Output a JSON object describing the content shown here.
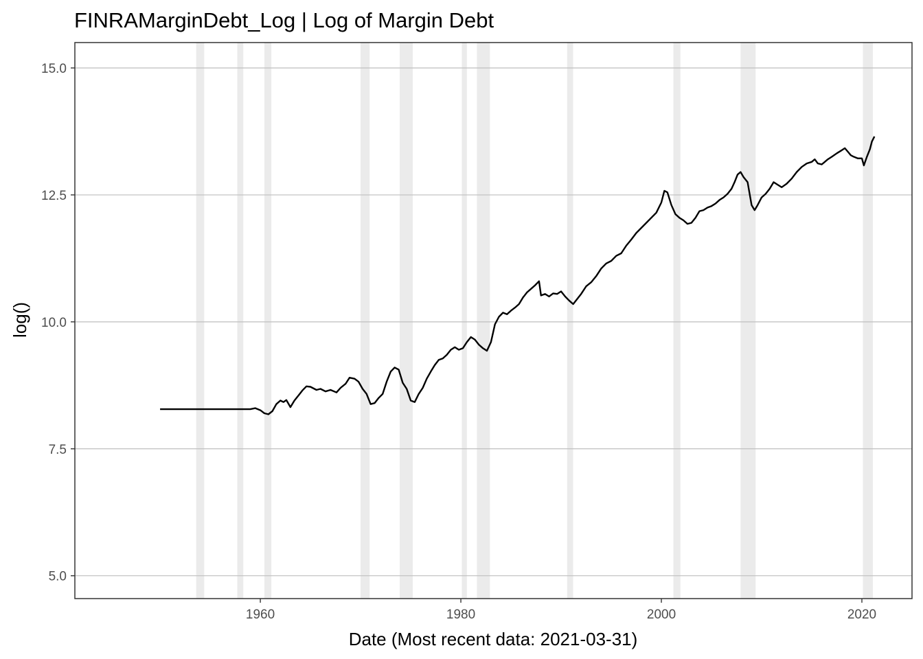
{
  "chart_data": {
    "type": "line",
    "title": "FINRAMarginDebt_Log | Log of Margin Debt",
    "xlabel": "Date (Most recent data: 2021-03-31)",
    "ylabel": "log()",
    "xlim": [
      1941.5,
      2025.0
    ],
    "ylim": [
      4.55,
      15.5
    ],
    "x_ticks": [
      1960,
      1980,
      2000,
      2020
    ],
    "x_tick_labels": [
      "1960",
      "1980",
      "2000",
      "2020"
    ],
    "y_ticks": [
      5.0,
      7.5,
      10.0,
      12.5,
      15.0
    ],
    "y_tick_labels": [
      "5.0",
      "7.5",
      "10.0",
      "12.5",
      "15.0"
    ],
    "grid": true,
    "colors": {
      "line": "#000000",
      "recession_band": "#ebebeb",
      "grid": "#bebebe",
      "border": "#333333"
    },
    "recessions": [
      [
        1953.6,
        1954.4
      ],
      [
        1957.7,
        1958.3
      ],
      [
        1960.4,
        1961.1
      ],
      [
        1970.0,
        1970.9
      ],
      [
        1973.9,
        1975.2
      ],
      [
        1980.1,
        1980.6
      ],
      [
        1981.6,
        1982.9
      ],
      [
        1990.6,
        1991.2
      ],
      [
        2001.2,
        2001.9
      ],
      [
        2007.9,
        2009.4
      ],
      [
        2020.1,
        2021.1
      ]
    ],
    "series": [
      {
        "x": [
          1950.0,
          1952.0,
          1955.0,
          1958.0,
          1959.0,
          1959.5,
          1960.0,
          1960.4,
          1960.8,
          1961.2,
          1961.6,
          1962.0,
          1962.3,
          1962.6,
          1963.0,
          1963.4,
          1963.8,
          1964.2,
          1964.6,
          1965.0,
          1965.6,
          1966.0,
          1966.5,
          1967.0,
          1967.6,
          1968.0,
          1968.5,
          1968.9,
          1969.4,
          1969.8,
          1970.2,
          1970.6,
          1971.0,
          1971.4,
          1971.8,
          1972.2,
          1972.6,
          1973.0,
          1973.4,
          1973.8,
          1974.2,
          1974.6,
          1975.0,
          1975.4,
          1975.8,
          1976.2,
          1976.6,
          1977.0,
          1977.4,
          1977.8,
          1978.2,
          1978.6,
          1979.0,
          1979.4,
          1979.8,
          1980.2,
          1980.6,
          1981.0,
          1981.4,
          1981.8,
          1982.2,
          1982.6,
          1983.0,
          1983.4,
          1983.8,
          1984.2,
          1984.6,
          1985.0,
          1985.4,
          1985.8,
          1986.2,
          1986.6,
          1987.0,
          1987.4,
          1987.8,
          1988.0,
          1988.4,
          1988.8,
          1989.2,
          1989.6,
          1990.0,
          1990.4,
          1990.8,
          1991.2,
          1991.6,
          1992.0,
          1992.5,
          1993.0,
          1993.5,
          1994.0,
          1994.5,
          1995.0,
          1995.5,
          1996.0,
          1996.5,
          1997.0,
          1997.5,
          1998.0,
          1998.5,
          1999.0,
          1999.5,
          2000.0,
          2000.3,
          2000.6,
          2001.0,
          2001.4,
          2001.8,
          2002.2,
          2002.6,
          2003.0,
          2003.4,
          2003.8,
          2004.2,
          2004.6,
          2005.0,
          2005.4,
          2005.8,
          2006.2,
          2006.6,
          2007.0,
          2007.3,
          2007.6,
          2007.9,
          2008.2,
          2008.6,
          2009.0,
          2009.3,
          2009.6,
          2010.0,
          2010.4,
          2010.8,
          2011.2,
          2011.6,
          2012.0,
          2012.5,
          2013.0,
          2013.5,
          2014.0,
          2014.5,
          2015.0,
          2015.3,
          2015.6,
          2016.0,
          2016.3,
          2016.6,
          2017.0,
          2017.5,
          2018.0,
          2018.3,
          2018.6,
          2018.9,
          2019.2,
          2019.6,
          2020.0,
          2020.2,
          2020.5,
          2020.8,
          2021.0,
          2021.25
        ],
        "values": [
          8.28,
          8.28,
          8.28,
          8.28,
          8.28,
          8.3,
          8.26,
          8.2,
          8.18,
          8.24,
          8.38,
          8.45,
          8.42,
          8.46,
          8.32,
          8.45,
          8.55,
          8.65,
          8.73,
          8.72,
          8.66,
          8.68,
          8.63,
          8.66,
          8.61,
          8.7,
          8.78,
          8.9,
          8.88,
          8.82,
          8.68,
          8.58,
          8.38,
          8.4,
          8.5,
          8.58,
          8.82,
          9.02,
          9.1,
          9.06,
          8.8,
          8.68,
          8.45,
          8.42,
          8.58,
          8.7,
          8.88,
          9.02,
          9.15,
          9.25,
          9.28,
          9.35,
          9.45,
          9.5,
          9.45,
          9.48,
          9.6,
          9.7,
          9.65,
          9.55,
          9.48,
          9.43,
          9.6,
          9.95,
          10.1,
          10.18,
          10.15,
          10.22,
          10.28,
          10.35,
          10.48,
          10.58,
          10.65,
          10.72,
          10.8,
          10.52,
          10.55,
          10.5,
          10.56,
          10.55,
          10.6,
          10.5,
          10.42,
          10.35,
          10.45,
          10.55,
          10.7,
          10.78,
          10.9,
          11.05,
          11.15,
          11.2,
          11.3,
          11.35,
          11.5,
          11.62,
          11.75,
          11.85,
          11.95,
          12.05,
          12.15,
          12.35,
          12.58,
          12.55,
          12.3,
          12.12,
          12.05,
          12.0,
          11.93,
          11.95,
          12.05,
          12.18,
          12.2,
          12.25,
          12.28,
          12.33,
          12.4,
          12.45,
          12.52,
          12.62,
          12.75,
          12.9,
          12.95,
          12.85,
          12.75,
          12.3,
          12.2,
          12.3,
          12.45,
          12.52,
          12.62,
          12.75,
          12.7,
          12.65,
          12.72,
          12.82,
          12.95,
          13.05,
          13.12,
          13.15,
          13.2,
          13.12,
          13.1,
          13.15,
          13.2,
          13.25,
          13.32,
          13.38,
          13.42,
          13.35,
          13.28,
          13.25,
          13.22,
          13.22,
          13.08,
          13.25,
          13.4,
          13.55,
          13.65
        ]
      }
    ]
  }
}
